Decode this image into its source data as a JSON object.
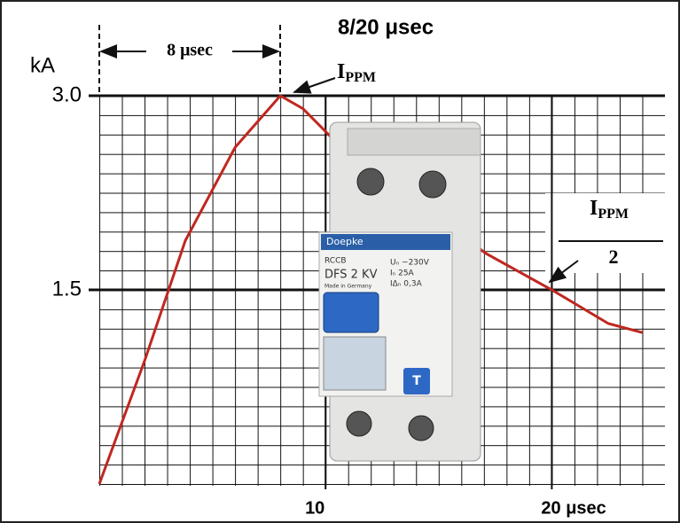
{
  "chart_data": {
    "type": "line",
    "title": "8/20 μsec",
    "y_label": "kA",
    "x": [
      0,
      2,
      3.8,
      6,
      8,
      9,
      10.7,
      17.1,
      20,
      22.5,
      24
    ],
    "values": [
      0,
      0.95,
      1.88,
      2.6,
      3.0,
      2.9,
      2.6,
      1.78,
      1.5,
      1.24,
      1.17
    ],
    "color": "#c0271f",
    "xlim": [
      0,
      25
    ],
    "ylim": [
      0,
      3.0
    ],
    "xticks": [
      10,
      {
        "value": 20,
        "label": "20 μsec"
      }
    ],
    "yticks": [
      {
        "value": 1.5,
        "label": "1.5"
      },
      {
        "value": 3.0,
        "label": "3.0"
      }
    ],
    "grid": true,
    "annotations": {
      "rise": "8 μsec",
      "peak": {
        "text": "I",
        "sub": "PPM"
      },
      "half": {
        "text": "I",
        "sub": "PPM",
        "denominator": "2"
      }
    }
  },
  "device": {
    "brand": "Doepke",
    "kind": "RCCB",
    "model": "DFS 2 KV",
    "origin": "Made in Germany",
    "ratings": [
      "Uₙ ~230V",
      "Iₙ 25A",
      "IΔₙ 0,3A"
    ],
    "button": "T"
  }
}
